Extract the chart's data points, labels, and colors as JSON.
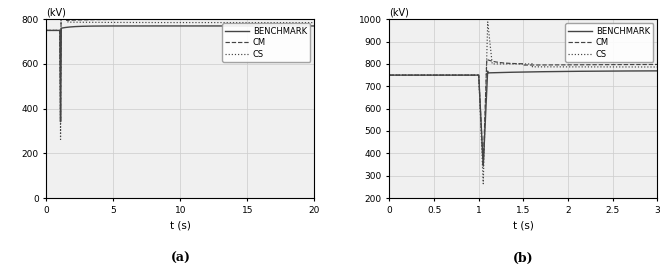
{
  "left": {
    "xlim": [
      0,
      20
    ],
    "ylim": [
      0,
      800
    ],
    "yticks": [
      0,
      200,
      400,
      600,
      800
    ],
    "ytick_labels": [
      "0",
      "200",
      "400",
      "600",
      "800"
    ],
    "xticks": [
      0,
      5,
      10,
      15,
      20
    ],
    "xlabel": "t (s)",
    "ylabel": "(kV)",
    "subplot_label": "(a)"
  },
  "right": {
    "xlim": [
      0,
      3
    ],
    "ylim": [
      200,
      1000
    ],
    "yticks": [
      200,
      300,
      400,
      500,
      600,
      700,
      800,
      900,
      1000
    ],
    "ytick_labels": [
      "200",
      "300",
      "400",
      "500",
      "600",
      "700",
      "800",
      "900",
      "1000"
    ],
    "xticks": [
      0,
      0.5,
      1.0,
      1.5,
      2.0,
      2.5,
      3.0
    ],
    "xtick_labels": [
      "0",
      "0.5",
      "1",
      "1.5",
      "2",
      "2.5",
      "3"
    ],
    "xlabel": "t (s)",
    "ylabel": "(kV)",
    "subplot_label": "(b)"
  },
  "legend_labels": [
    "BENCHMARK",
    "CM",
    "CS"
  ],
  "line_styles": [
    "-",
    "--",
    ":"
  ],
  "line_color": "#444444",
  "grid_color": "#cccccc",
  "background_color": "#f0f0f0",
  "fault_time": 1.0
}
